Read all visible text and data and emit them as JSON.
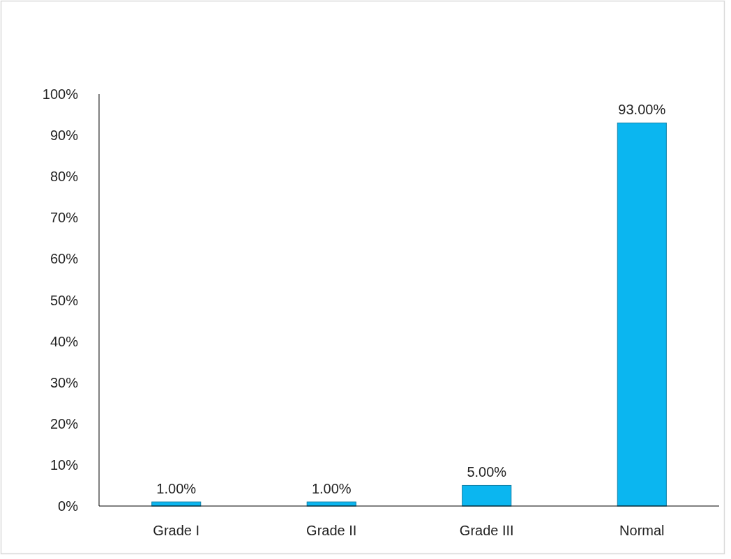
{
  "chart_data": {
    "type": "bar",
    "categories": [
      "Grade I",
      "Grade II",
      "Grade III",
      "Normal"
    ],
    "values": [
      1,
      1,
      5,
      93
    ],
    "color": "#0bb6f0",
    "value_labels": [
      "1.00%",
      "1.00%",
      "5.00%",
      "93.00%"
    ],
    "ylim": [
      0,
      100
    ],
    "yticks": [
      {
        "value": 0,
        "label": "0%"
      },
      {
        "value": 10,
        "label": "10%"
      },
      {
        "value": 20,
        "label": "20%"
      },
      {
        "value": 30,
        "label": "30%"
      },
      {
        "value": 40,
        "label": "40%"
      },
      {
        "value": 50,
        "label": "50%"
      },
      {
        "value": 60,
        "label": "60%"
      },
      {
        "value": 70,
        "label": "70%"
      },
      {
        "value": 80,
        "label": "80%"
      },
      {
        "value": 90,
        "label": "90%"
      },
      {
        "value": 100,
        "label": "100%"
      }
    ],
    "grid": false
  }
}
